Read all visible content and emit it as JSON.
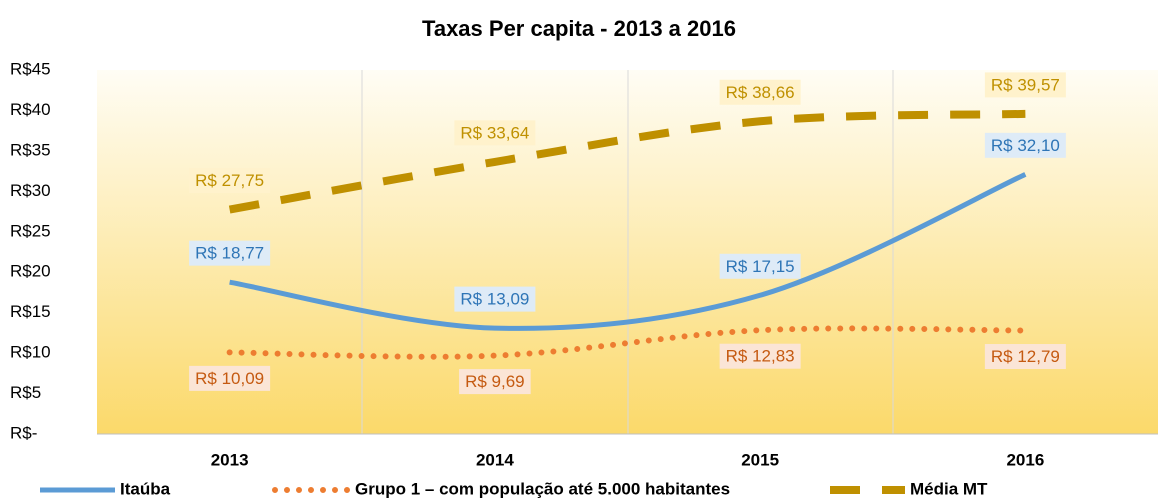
{
  "chart_data": {
    "type": "line",
    "title": "Taxas Per capita - 2013 a 2016",
    "categories": [
      "2013",
      "2014",
      "2015",
      "2016"
    ],
    "series": [
      {
        "name": "Itaúba",
        "color": "#5b9bd5",
        "dash": "solid",
        "values": [
          18.77,
          13.09,
          17.15,
          32.1
        ],
        "value_labels": [
          "R$ 18,77",
          "R$ 13,09",
          "R$ 17,15",
          "R$ 32,10"
        ]
      },
      {
        "name": "Grupo 1 – com população até 5.000 habitantes",
        "color": "#ed7d31",
        "dash": "dotted",
        "values": [
          10.09,
          9.69,
          12.83,
          12.79
        ],
        "value_labels": [
          "R$ 10,09",
          "R$ 9,69",
          "R$ 12,83",
          "R$ 12,79"
        ]
      },
      {
        "name": "Média MT",
        "color": "#bf9000",
        "dash": "dashed",
        "values": [
          27.75,
          33.64,
          38.66,
          39.57
        ],
        "value_labels": [
          "R$ 27,75",
          "R$ 33,64",
          "R$ 38,66",
          "R$ 39,57"
        ]
      }
    ],
    "ylim": [
      0,
      45
    ],
    "yticks": [
      {
        "value": 0,
        "label": "R$-"
      },
      {
        "value": 5,
        "label": "R$5"
      },
      {
        "value": 10,
        "label": "R$10"
      },
      {
        "value": 15,
        "label": "R$15"
      },
      {
        "value": 20,
        "label": "R$20"
      },
      {
        "value": 25,
        "label": "R$25"
      },
      {
        "value": 30,
        "label": "R$30"
      },
      {
        "value": 35,
        "label": "R$35"
      },
      {
        "value": 40,
        "label": "R$40"
      },
      {
        "value": 45,
        "label": "R$45"
      }
    ],
    "grid": false,
    "legend": "bottom"
  }
}
